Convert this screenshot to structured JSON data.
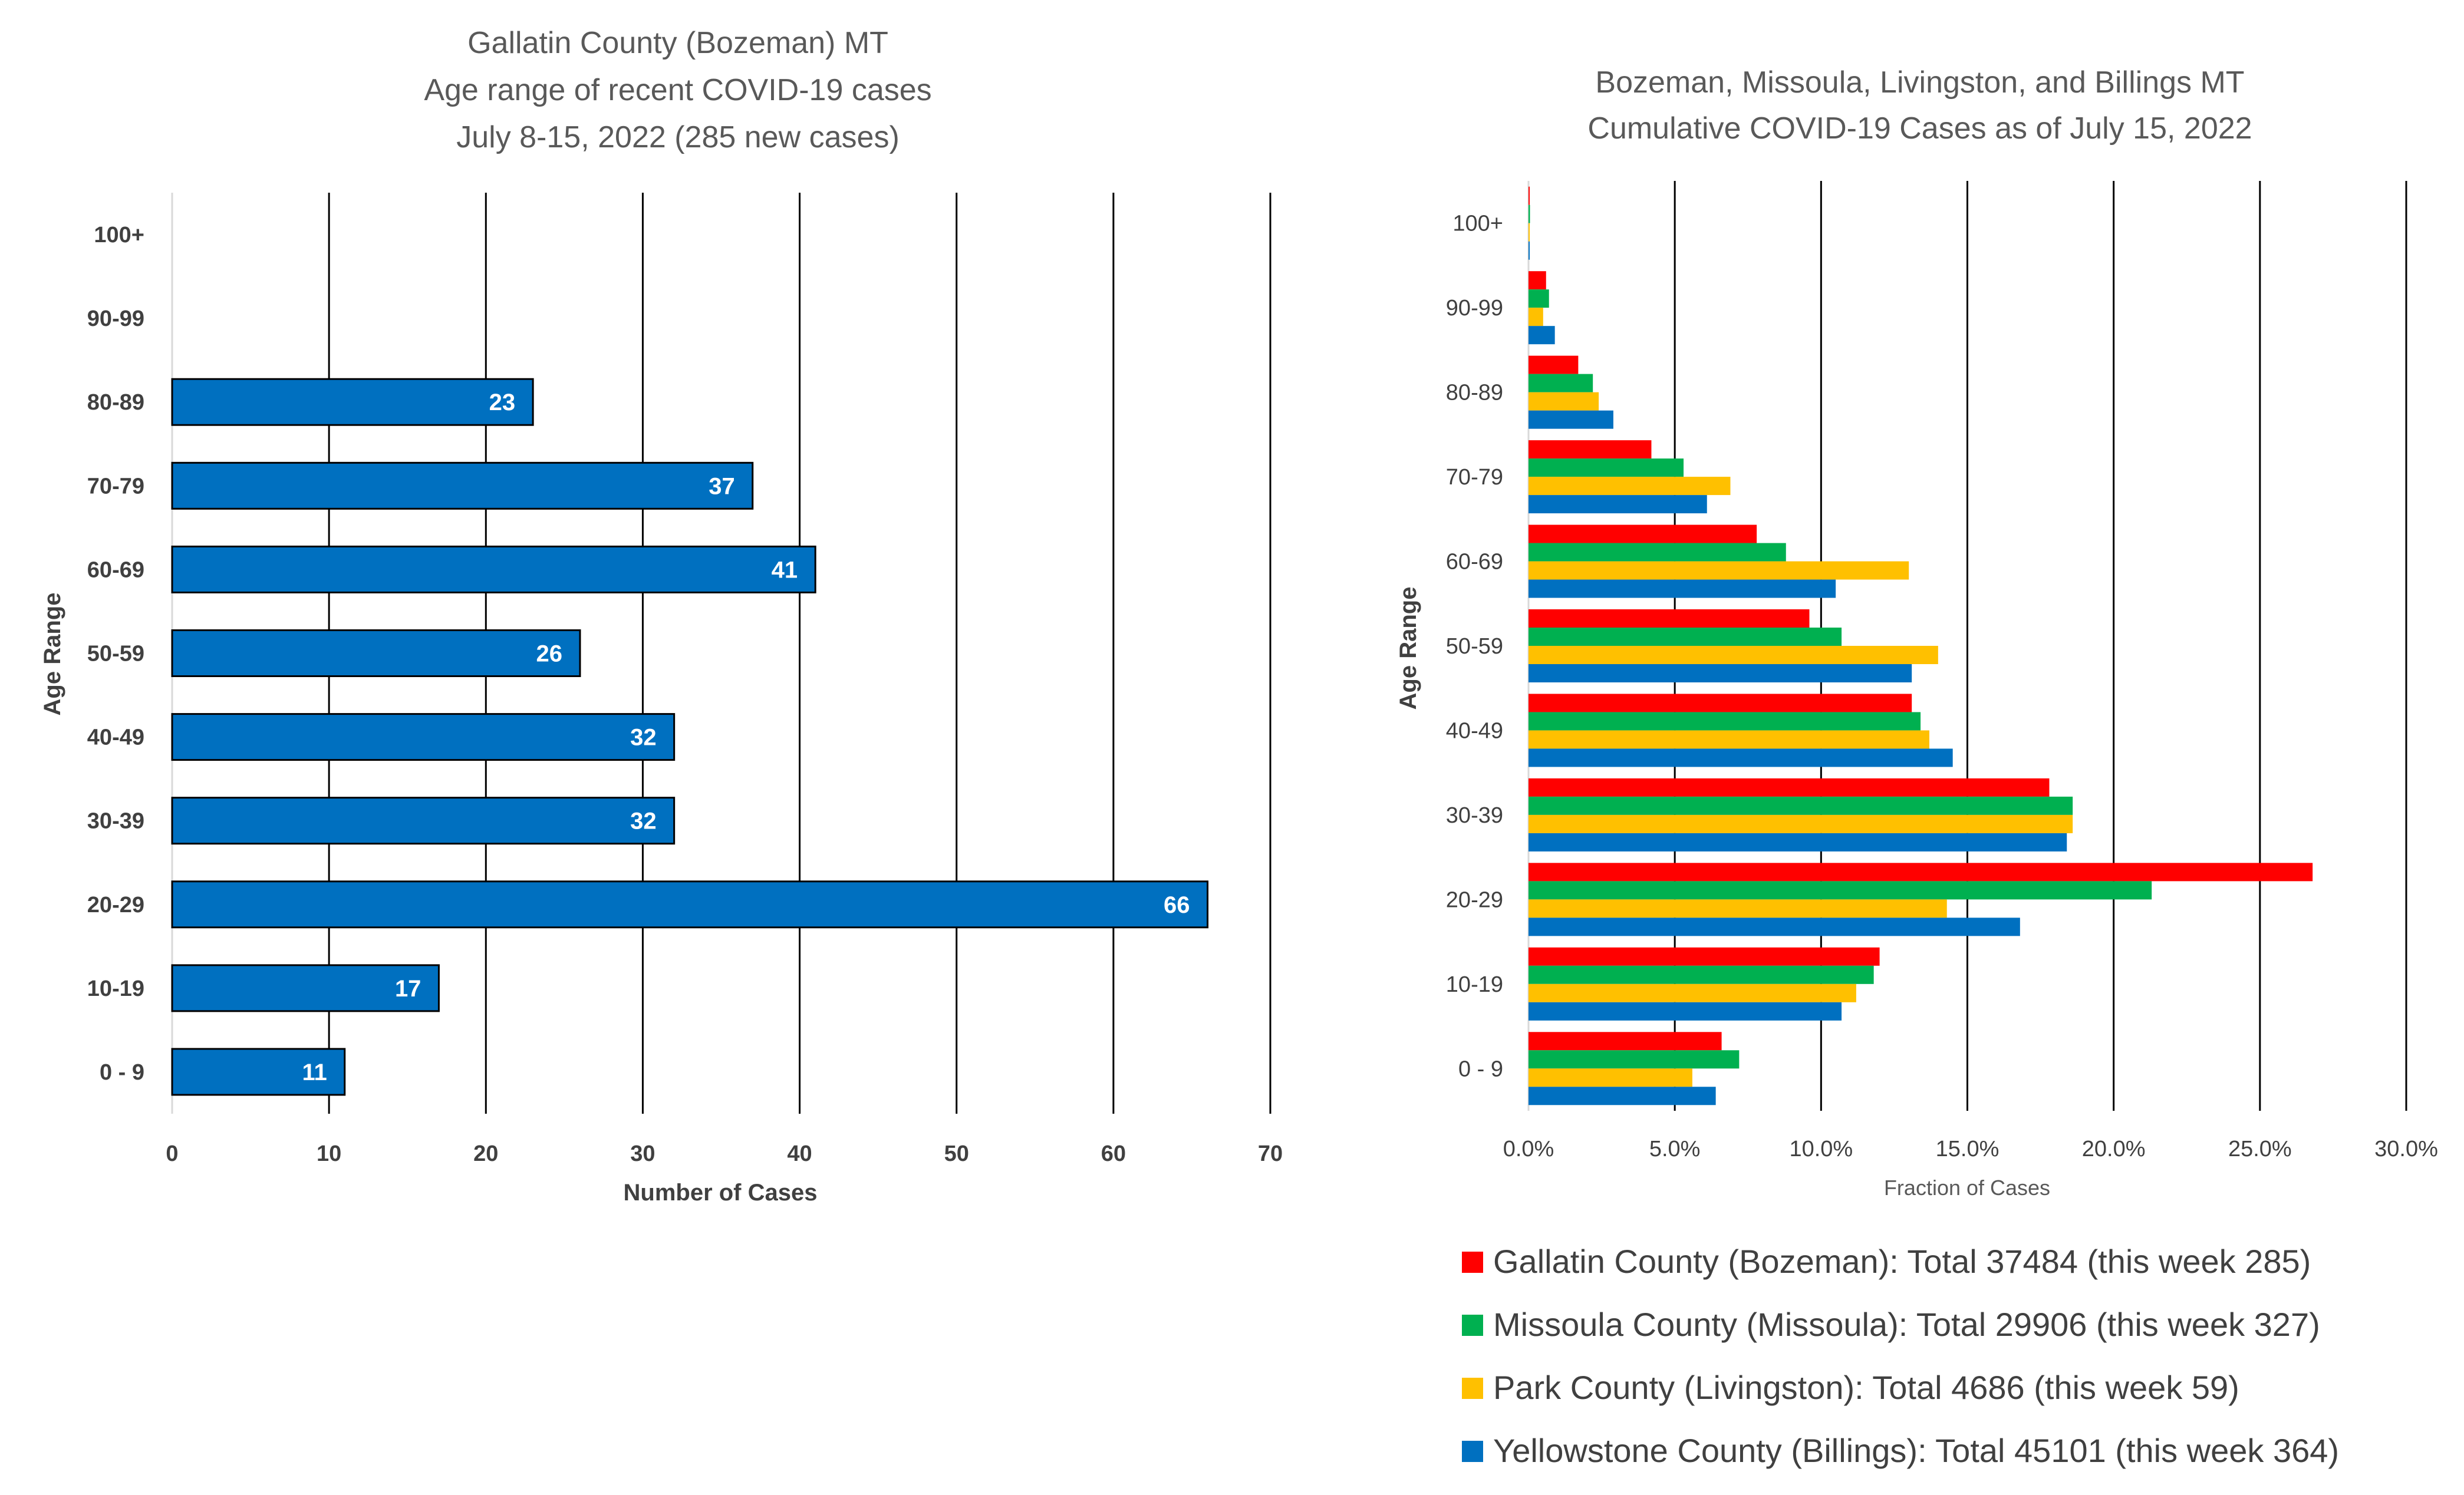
{
  "chart_data": [
    {
      "type": "bar",
      "orientation": "horizontal",
      "title": [
        "Gallatin County (Bozeman) MT",
        "Age range of recent COVID-19 cases",
        "July 8-15, 2022 (285 new cases)"
      ],
      "xlabel": "Number of Cases",
      "ylabel": "Age Range",
      "categories": [
        "0 - 9",
        "10-19",
        "20-29",
        "30-39",
        "40-49",
        "50-59",
        "60-69",
        "70-79",
        "80-89",
        "90-99",
        "100+"
      ],
      "values": [
        11,
        17,
        66,
        32,
        32,
        26,
        41,
        37,
        23,
        null,
        null
      ],
      "data_labels": [
        "11",
        "17",
        "66",
        "32",
        "32",
        "26",
        "41",
        "37",
        "23",
        "",
        ""
      ],
      "xlim": [
        0,
        70
      ],
      "xticks": [
        "0",
        "10",
        "20",
        "30",
        "40",
        "50",
        "60",
        "70"
      ],
      "color": "#0070C0",
      "grid": true
    },
    {
      "type": "bar",
      "orientation": "horizontal",
      "title": [
        "Bozeman, Missoula, Livingston, and Billings MT",
        "Cumulative COVID-19 Cases as of July 15, 2022"
      ],
      "xlabel": "Fraction of Cases",
      "ylabel": "Age Range",
      "categories": [
        "0 - 9",
        "10-19",
        "20-29",
        "30-39",
        "40-49",
        "50-59",
        "60-69",
        "70-79",
        "80-89",
        "90-99",
        "100+"
      ],
      "xlim": [
        0,
        0.3
      ],
      "xticks": [
        "0.0%",
        "5.0%",
        "10.0%",
        "15.0%",
        "20.0%",
        "25.0%",
        "30.0%"
      ],
      "grid": true,
      "legend_position": "bottom",
      "series": [
        {
          "name": "Gallatin County (Bozeman): Total 37484 (this week 285)",
          "color": "#FF0000",
          "values": [
            0.066,
            0.12,
            0.268,
            0.178,
            0.131,
            0.096,
            0.078,
            0.042,
            0.017,
            0.006,
            0.0002
          ]
        },
        {
          "name": "Missoula County (Missoula): Total 29906 (this week 327)",
          "color": "#00B050",
          "values": [
            0.072,
            0.118,
            0.213,
            0.186,
            0.134,
            0.107,
            0.088,
            0.053,
            0.022,
            0.007,
            0.0005
          ]
        },
        {
          "name": "Park County (Livingston): Total 4686 (this week 59)",
          "color": "#FFC000",
          "values": [
            0.056,
            0.112,
            0.143,
            0.186,
            0.137,
            0.14,
            0.13,
            0.069,
            0.024,
            0.005,
            0.0002
          ]
        },
        {
          "name": "Yellowstone County (Billings): Total 45101 (this week 364)",
          "color": "#0070C0",
          "values": [
            0.064,
            0.107,
            0.168,
            0.184,
            0.145,
            0.131,
            0.105,
            0.061,
            0.029,
            0.009,
            0.0004
          ]
        }
      ]
    }
  ]
}
